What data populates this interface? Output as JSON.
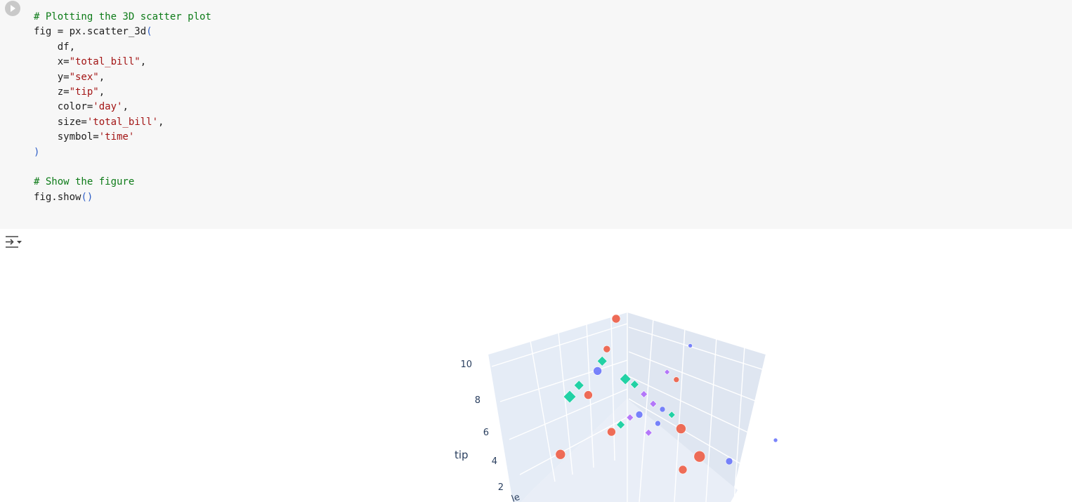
{
  "cell": {
    "lines": [
      [
        {
          "t": "# Plotting the 3D scatter plot",
          "c": "cm"
        }
      ],
      [
        {
          "t": "fig = px.scatter_3d"
        },
        {
          "t": "(",
          "c": "pn"
        }
      ],
      [
        {
          "t": "    df,"
        }
      ],
      [
        {
          "t": "    x="
        },
        {
          "t": "\"total_bill\"",
          "c": "st"
        },
        {
          "t": ","
        }
      ],
      [
        {
          "t": "    y="
        },
        {
          "t": "\"sex\"",
          "c": "st"
        },
        {
          "t": ","
        }
      ],
      [
        {
          "t": "    z="
        },
        {
          "t": "\"tip\"",
          "c": "st"
        },
        {
          "t": ","
        }
      ],
      [
        {
          "t": "    color="
        },
        {
          "t": "'day'",
          "c": "st"
        },
        {
          "t": ","
        }
      ],
      [
        {
          "t": "    size="
        },
        {
          "t": "'total_bill'",
          "c": "st"
        },
        {
          "t": ","
        }
      ],
      [
        {
          "t": "    symbol="
        },
        {
          "t": "'time'",
          "c": "st"
        }
      ],
      [
        {
          "t": ")",
          "c": "pn"
        }
      ],
      [
        {
          "t": ""
        }
      ],
      [
        {
          "t": "# Show the figure",
          "c": "cm"
        }
      ],
      [
        {
          "t": "fig.show"
        },
        {
          "t": "()",
          "c": "pn"
        }
      ]
    ]
  },
  "icons": {
    "run": "play-circle-icon",
    "output_toggle": "collapse-output-icon"
  },
  "colors": {
    "thur": "#EF553B",
    "fri": "#636EFA",
    "sat": "#00CC96",
    "sun": "#AB63FA",
    "scene_bg": "#E5ECF6"
  },
  "chart_data": {
    "type": "scatter",
    "subtype": "3d",
    "z_axis": {
      "title": "tip",
      "ticks": [
        "10",
        "8",
        "6",
        "4",
        "2"
      ]
    },
    "y_axis_partial_label": "le",
    "points": [
      {
        "x": 20,
        "y": 0,
        "z": 9.0,
        "day": "thur",
        "s": 6
      },
      {
        "x": 18,
        "y": 0,
        "z": 7.5,
        "day": "thur",
        "s": 5
      },
      {
        "x": 16,
        "y": 0,
        "z": 6.4,
        "day": "fri",
        "s": 6
      },
      {
        "x": 22,
        "y": 0,
        "z": 6.2,
        "day": "sat",
        "s": 8,
        "sym": "diamond"
      },
      {
        "x": 24,
        "y": 0,
        "z": 6.0,
        "day": "sat",
        "s": 6,
        "sym": "diamond"
      },
      {
        "x": 10,
        "y": 0,
        "z": 5.0,
        "day": "sat",
        "s": 9,
        "sym": "diamond"
      },
      {
        "x": 12,
        "y": 0,
        "z": 5.6,
        "day": "sat",
        "s": 7,
        "sym": "diamond"
      },
      {
        "x": 14,
        "y": 0,
        "z": 5.2,
        "day": "thur",
        "s": 6
      },
      {
        "x": 26,
        "y": 0,
        "z": 5.6,
        "day": "sun",
        "s": 5,
        "sym": "diamond"
      },
      {
        "x": 28,
        "y": 0,
        "z": 5.2,
        "day": "sun",
        "s": 5,
        "sym": "diamond"
      },
      {
        "x": 30,
        "y": 0,
        "z": 5.0,
        "day": "fri",
        "s": 4
      },
      {
        "x": 32,
        "y": 0,
        "z": 4.8,
        "day": "sat",
        "s": 5,
        "sym": "diamond"
      },
      {
        "x": 34,
        "y": 0,
        "z": 4.2,
        "day": "thur",
        "s": 7
      },
      {
        "x": 23,
        "y": 0,
        "z": 4.4,
        "day": "sun",
        "s": 5,
        "sym": "diamond"
      },
      {
        "x": 25,
        "y": 0,
        "z": 4.6,
        "day": "fri",
        "s": 5
      },
      {
        "x": 21,
        "y": 0,
        "z": 4.0,
        "day": "sat",
        "s": 6,
        "sym": "diamond"
      },
      {
        "x": 19,
        "y": 0,
        "z": 3.6,
        "day": "thur",
        "s": 6
      },
      {
        "x": 27,
        "y": 0,
        "z": 3.8,
        "day": "sun",
        "s": 5,
        "sym": "diamond"
      },
      {
        "x": 29,
        "y": 0,
        "z": 4.3,
        "day": "fri",
        "s": 4
      },
      {
        "x": 38,
        "y": 0,
        "z": 3.0,
        "day": "thur",
        "s": 8
      },
      {
        "x": 8,
        "y": 0,
        "z": 2.2,
        "day": "thur",
        "s": 7
      },
      {
        "x": 36,
        "y": 0,
        "z": 8.2,
        "day": "fri",
        "s": 3
      },
      {
        "x": 31,
        "y": 0,
        "z": 6.8,
        "day": "sun",
        "s": 4,
        "sym": "diamond"
      },
      {
        "x": 33,
        "y": 0,
        "z": 6.5,
        "day": "thur",
        "s": 4
      },
      {
        "x": 17,
        "y": 0,
        "z": 6.9,
        "day": "sat",
        "s": 7,
        "sym": "diamond"
      },
      {
        "x": 30,
        "y": 1,
        "z": 3.2,
        "day": "fri",
        "s": 5
      },
      {
        "x": 20,
        "y": 1,
        "z": 2.5,
        "day": "thur",
        "s": 6
      },
      {
        "x": 40,
        "y": 1,
        "z": 4.5,
        "day": "fri",
        "s": 3
      }
    ]
  }
}
